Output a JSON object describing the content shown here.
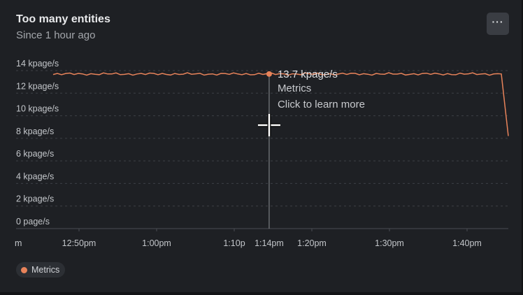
{
  "header": {
    "title": "Too many entities",
    "subtitle": "Since 1 hour ago",
    "menu_label": "···"
  },
  "colors": {
    "series": "#e8835a",
    "grid": "#3d4046",
    "crosshair": "#8e9196"
  },
  "chart_data": {
    "type": "line",
    "title": "Too many entities",
    "subtitle": "Since 1 hour ago",
    "unit": "kpage/s",
    "ylim": [
      0,
      14
    ],
    "y_ticks": [
      {
        "value": 14,
        "label": "14 kpage/s"
      },
      {
        "value": 12,
        "label": "12 kpage/s"
      },
      {
        "value": 10,
        "label": "10 kpage/s"
      },
      {
        "value": 8,
        "label": "8 kpage/s"
      },
      {
        "value": 6,
        "label": "6 kpage/s"
      },
      {
        "value": 4,
        "label": "4 kpage/s"
      },
      {
        "value": 2,
        "label": "2 kpage/s"
      },
      {
        "value": 0,
        "label": "0 page/s"
      }
    ],
    "x_ticks": [
      {
        "minute": 45.5,
        "label": "m"
      },
      {
        "minute": 50,
        "label": "12:50pm"
      },
      {
        "minute": 60,
        "label": "1:00pm"
      },
      {
        "minute": 70,
        "label": "1:10p"
      },
      {
        "minute": 74.5,
        "label": "1:14pm"
      },
      {
        "minute": 80,
        "label": "1:20pm"
      },
      {
        "minute": 90,
        "label": "1:30pm"
      },
      {
        "minute": 100,
        "label": "1:40pm"
      }
    ],
    "xlim": [
      45.5,
      105
    ],
    "grid": true,
    "legend": "bottom-left",
    "series": [
      {
        "name": "Metrics",
        "x": [
          50,
          54,
          58,
          62,
          66,
          70,
          74.5,
          78,
          82,
          86,
          90,
          94,
          98,
          102,
          104.5,
          105
        ],
        "y": [
          13.7,
          13.7,
          13.7,
          13.7,
          13.7,
          13.7,
          13.7,
          13.7,
          13.7,
          13.7,
          13.7,
          13.7,
          13.7,
          13.7,
          13.7,
          8.2
        ]
      }
    ],
    "tooltip": {
      "value": "13.7 kpage/s",
      "series": "Metrics",
      "hint": "Click to learn more",
      "x": 74.5,
      "y": 13.7
    }
  },
  "legend": {
    "items": [
      {
        "label": "Metrics"
      }
    ]
  }
}
